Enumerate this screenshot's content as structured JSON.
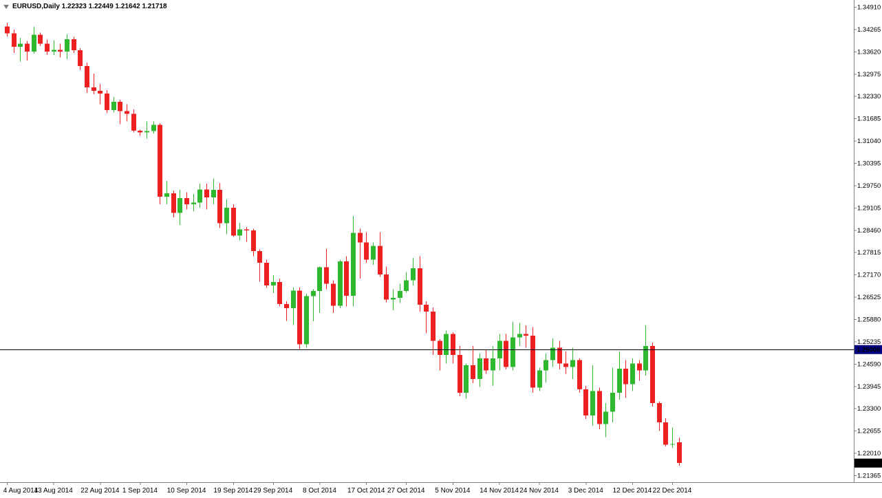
{
  "window": {
    "background": "#ffffff",
    "border_color": "#808080"
  },
  "header": {
    "text": "EURUSD,Daily 1.22323 1.22449 1.21642 1.21718",
    "symbol_period": "EURUSD,Daily",
    "open": "1.22323",
    "high": "1.22449",
    "low": "1.21642",
    "close": "1.21718",
    "marker_icon": "down-triangle"
  },
  "chart_data": {
    "type": "candlestick",
    "symbol": "EURUSD",
    "timeframe": "Daily",
    "title": "EURUSD,Daily",
    "grid": false,
    "colors": {
      "up": "#2eb82e",
      "down": "#ec2020",
      "hline": "#000000",
      "hline_label_bg": "#000080",
      "hline_label_text": "#ffffff",
      "price_label_bg": "#000000",
      "price_label_text": "#ffffff",
      "axis_text": "#000000",
      "axis_line": "#808080",
      "background": "#ffffff"
    },
    "y_axis": {
      "top_price": 1.35109,
      "bottom_price": 1.21166,
      "tick_step": 0.00645,
      "ticks": [
        "1.34910",
        "1.34265",
        "1.33620",
        "1.32975",
        "1.32330",
        "1.31685",
        "1.31040",
        "1.30395",
        "1.29750",
        "1.29105",
        "1.28460",
        "1.27815",
        "1.27170",
        "1.26525",
        "1.25880",
        "1.25235",
        "1.24590",
        "1.23945",
        "1.23300",
        "1.22655",
        "1.22010",
        "1.21365"
      ]
    },
    "x_axis": {
      "labels": [
        {
          "text": "4 Aug 2014",
          "i": 0
        },
        {
          "text": "13 Aug 2014",
          "i": 7
        },
        {
          "text": "22 Aug 2014",
          "i": 14
        },
        {
          "text": "1 Sep 2014",
          "i": 20
        },
        {
          "text": "10 Sep 2014",
          "i": 27
        },
        {
          "text": "19 Sep 2014",
          "i": 34
        },
        {
          "text": "29 Sep 2014",
          "i": 40
        },
        {
          "text": "8 Oct 2014",
          "i": 47
        },
        {
          "text": "17 Oct 2014",
          "i": 54
        },
        {
          "text": "27 Oct 2014",
          "i": 60
        },
        {
          "text": "5 Nov 2014",
          "i": 67
        },
        {
          "text": "14 Nov 2014",
          "i": 74
        },
        {
          "text": "24 Nov 2014",
          "i": 80
        },
        {
          "text": "3 Dec 2014",
          "i": 87
        },
        {
          "text": "12 Dec 2014",
          "i": 94
        },
        {
          "text": "22 Dec 2014",
          "i": 100
        }
      ]
    },
    "hline": {
      "price": 1.25,
      "label": "1.25000"
    },
    "price_marker": {
      "price": 1.21718,
      "label": "1.21718"
    },
    "candles": [
      [
        "2014.08.04",
        1.3434,
        1.3445,
        1.3405,
        1.3414
      ],
      [
        "2014.08.05",
        1.3414,
        1.3425,
        1.3358,
        1.3376
      ],
      [
        "2014.08.06",
        1.3376,
        1.3402,
        1.3333,
        1.3385
      ],
      [
        "2014.08.07",
        1.3385,
        1.3393,
        1.3336,
        1.3362
      ],
      [
        "2014.08.08",
        1.3362,
        1.3433,
        1.3356,
        1.341
      ],
      [
        "2014.08.11",
        1.341,
        1.3416,
        1.3378,
        1.3385
      ],
      [
        "2014.08.12",
        1.3385,
        1.3397,
        1.3353,
        1.3362
      ],
      [
        "2014.08.13",
        1.3362,
        1.3395,
        1.3352,
        1.3367
      ],
      [
        "2014.08.14",
        1.3367,
        1.3385,
        1.3345,
        1.3362
      ],
      [
        "2014.08.15",
        1.3362,
        1.3412,
        1.334,
        1.3398
      ],
      [
        "2014.08.18",
        1.3398,
        1.3404,
        1.3358,
        1.3366
      ],
      [
        "2014.08.19",
        1.3366,
        1.3372,
        1.3308,
        1.332
      ],
      [
        "2014.08.20",
        1.332,
        1.333,
        1.3242,
        1.3258
      ],
      [
        "2014.08.21",
        1.3258,
        1.3298,
        1.3238,
        1.3248
      ],
      [
        "2014.08.22",
        1.3248,
        1.3268,
        1.321,
        1.324
      ],
      [
        "2014.08.25",
        1.324,
        1.325,
        1.3184,
        1.3193
      ],
      [
        "2014.08.26",
        1.3193,
        1.323,
        1.3186,
        1.3217
      ],
      [
        "2014.08.27",
        1.3217,
        1.3222,
        1.3152,
        1.319
      ],
      [
        "2014.08.28",
        1.319,
        1.321,
        1.316,
        1.3182
      ],
      [
        "2014.08.29",
        1.3182,
        1.3195,
        1.3128,
        1.3133
      ],
      [
        "2014.09.01",
        1.3133,
        1.3136,
        1.3118,
        1.3128
      ],
      [
        "2014.09.02",
        1.3128,
        1.316,
        1.311,
        1.3132
      ],
      [
        "2014.09.03",
        1.3132,
        1.316,
        1.3125,
        1.315
      ],
      [
        "2014.09.04",
        1.315,
        1.3155,
        1.292,
        1.2942
      ],
      [
        "2014.09.05",
        1.2942,
        1.2988,
        1.292,
        1.2952
      ],
      [
        "2014.09.08",
        1.2952,
        1.296,
        1.2882,
        1.2895
      ],
      [
        "2014.09.09",
        1.2895,
        1.2962,
        1.286,
        1.2938
      ],
      [
        "2014.09.10",
        1.2938,
        1.2955,
        1.2905,
        1.292
      ],
      [
        "2014.09.11",
        1.292,
        1.295,
        1.29,
        1.2925
      ],
      [
        "2014.09.12",
        1.2925,
        1.298,
        1.291,
        1.2963
      ],
      [
        "2014.09.15",
        1.2963,
        1.298,
        1.2905,
        1.294
      ],
      [
        "2014.09.16",
        1.294,
        1.2995,
        1.292,
        1.2962
      ],
      [
        "2014.09.17",
        1.2962,
        1.2982,
        1.2852,
        1.2865
      ],
      [
        "2014.09.18",
        1.2865,
        1.2935,
        1.2834,
        1.291
      ],
      [
        "2014.09.19",
        1.291,
        1.292,
        1.2826,
        1.283
      ],
      [
        "2014.09.22",
        1.283,
        1.2866,
        1.2816,
        1.2848
      ],
      [
        "2014.09.23",
        1.2848,
        1.2855,
        1.2812,
        1.2845
      ],
      [
        "2014.09.24",
        1.2845,
        1.285,
        1.277,
        1.2785
      ],
      [
        "2014.09.25",
        1.2785,
        1.279,
        1.2696,
        1.2751
      ],
      [
        "2014.09.26",
        1.2751,
        1.276,
        1.2678,
        1.2685
      ],
      [
        "2014.09.29",
        1.2685,
        1.2715,
        1.2664,
        1.2695
      ],
      [
        "2014.09.30",
        1.2695,
        1.2705,
        1.2625,
        1.2632
      ],
      [
        "2014.10.01",
        1.2632,
        1.264,
        1.2583,
        1.262
      ],
      [
        "2014.10.02",
        1.262,
        1.268,
        1.2571,
        1.2671
      ],
      [
        "2014.10.03",
        1.2671,
        1.268,
        1.2501,
        1.2515
      ],
      [
        "2014.10.06",
        1.2515,
        1.2662,
        1.2505,
        1.2655
      ],
      [
        "2014.10.07",
        1.2655,
        1.2675,
        1.2582,
        1.267
      ],
      [
        "2014.10.08",
        1.267,
        1.274,
        1.2606,
        1.2738
      ],
      [
        "2014.10.09",
        1.2738,
        1.2792,
        1.2675,
        1.269
      ],
      [
        "2014.10.10",
        1.269,
        1.27,
        1.2606,
        1.2627
      ],
      [
        "2014.10.13",
        1.2627,
        1.276,
        1.262,
        1.2755
      ],
      [
        "2014.10.14",
        1.2755,
        1.277,
        1.2625,
        1.2656
      ],
      [
        "2014.10.15",
        1.2656,
        1.2886,
        1.2625,
        1.2838
      ],
      [
        "2014.10.16",
        1.2838,
        1.285,
        1.2705,
        1.281
      ],
      [
        "2014.10.17",
        1.281,
        1.284,
        1.275,
        1.276
      ],
      [
        "2014.10.20",
        1.276,
        1.281,
        1.2745,
        1.28
      ],
      [
        "2014.10.21",
        1.28,
        1.284,
        1.271,
        1.2717
      ],
      [
        "2014.10.22",
        1.2717,
        1.274,
        1.2637,
        1.2645
      ],
      [
        "2014.10.23",
        1.2645,
        1.2675,
        1.2614,
        1.265
      ],
      [
        "2014.10.24",
        1.265,
        1.269,
        1.2635,
        1.267
      ],
      [
        "2014.10.27",
        1.267,
        1.2724,
        1.2665,
        1.27
      ],
      [
        "2014.10.28",
        1.27,
        1.2765,
        1.2685,
        1.2735
      ],
      [
        "2014.10.29",
        1.2735,
        1.277,
        1.261,
        1.263
      ],
      [
        "2014.10.30",
        1.263,
        1.264,
        1.2547,
        1.261
      ],
      [
        "2014.10.31",
        1.261,
        1.2622,
        1.2485,
        1.2525
      ],
      [
        "2014.11.03",
        1.2525,
        1.253,
        1.244,
        1.2485
      ],
      [
        "2014.11.04",
        1.2485,
        1.2555,
        1.246,
        1.2545
      ],
      [
        "2014.11.05",
        1.2545,
        1.255,
        1.246,
        1.2485
      ],
      [
        "2014.11.06",
        1.2485,
        1.251,
        1.2365,
        1.2375
      ],
      [
        "2014.11.07",
        1.2375,
        1.246,
        1.2358,
        1.2455
      ],
      [
        "2014.11.10",
        1.2455,
        1.251,
        1.2403,
        1.2415
      ],
      [
        "2014.11.11",
        1.2415,
        1.249,
        1.2392,
        1.2475
      ],
      [
        "2014.11.12",
        1.2475,
        1.25,
        1.243,
        1.244
      ],
      [
        "2014.11.13",
        1.244,
        1.251,
        1.2395,
        1.2475
      ],
      [
        "2014.11.14",
        1.2475,
        1.2545,
        1.244,
        1.2525
      ],
      [
        "2014.11.17",
        1.2525,
        1.2545,
        1.2443,
        1.245
      ],
      [
        "2014.11.18",
        1.245,
        1.258,
        1.244,
        1.2535
      ],
      [
        "2014.11.19",
        1.2535,
        1.2577,
        1.251,
        1.2545
      ],
      [
        "2014.11.20",
        1.2545,
        1.257,
        1.2505,
        1.254
      ],
      [
        "2014.11.21",
        1.254,
        1.2565,
        1.2375,
        1.239
      ],
      [
        "2014.11.24",
        1.239,
        1.2448,
        1.238,
        1.244
      ],
      [
        "2014.11.25",
        1.244,
        1.249,
        1.2405,
        1.247
      ],
      [
        "2014.11.26",
        1.247,
        1.2532,
        1.245,
        1.2505
      ],
      [
        "2014.11.27",
        1.2505,
        1.2525,
        1.2443,
        1.246
      ],
      [
        "2014.11.28",
        1.246,
        1.2495,
        1.243,
        1.245
      ],
      [
        "2014.12.01",
        1.245,
        1.2505,
        1.2415,
        1.247
      ],
      [
        "2014.12.02",
        1.247,
        1.2475,
        1.2375,
        1.2385
      ],
      [
        "2014.12.03",
        1.2385,
        1.2395,
        1.23,
        1.231
      ],
      [
        "2014.12.04",
        1.231,
        1.2455,
        1.228,
        1.238
      ],
      [
        "2014.12.05",
        1.238,
        1.239,
        1.227,
        1.2285
      ],
      [
        "2014.12.08",
        1.2285,
        1.2345,
        1.2247,
        1.232
      ],
      [
        "2014.12.09",
        1.232,
        1.2448,
        1.229,
        1.2375
      ],
      [
        "2014.12.10",
        1.2375,
        1.2495,
        1.2355,
        1.2445
      ],
      [
        "2014.12.11",
        1.2445,
        1.247,
        1.236,
        1.24
      ],
      [
        "2014.12.12",
        1.24,
        1.2475,
        1.238,
        1.246
      ],
      [
        "2014.12.15",
        1.246,
        1.247,
        1.241,
        1.244
      ],
      [
        "2014.12.16",
        1.244,
        1.257,
        1.2425,
        1.251
      ],
      [
        "2014.12.17",
        1.251,
        1.252,
        1.2335,
        1.2345
      ],
      [
        "2014.12.18",
        1.2345,
        1.235,
        1.2265,
        1.229
      ],
      [
        "2014.12.19",
        1.229,
        1.2302,
        1.222,
        1.2225
      ],
      [
        "2014.12.22",
        1.2225,
        1.2275,
        1.2216,
        1.2227
      ],
      [
        "2014.12.23",
        1.22323,
        1.22449,
        1.21642,
        1.21718
      ]
    ]
  }
}
